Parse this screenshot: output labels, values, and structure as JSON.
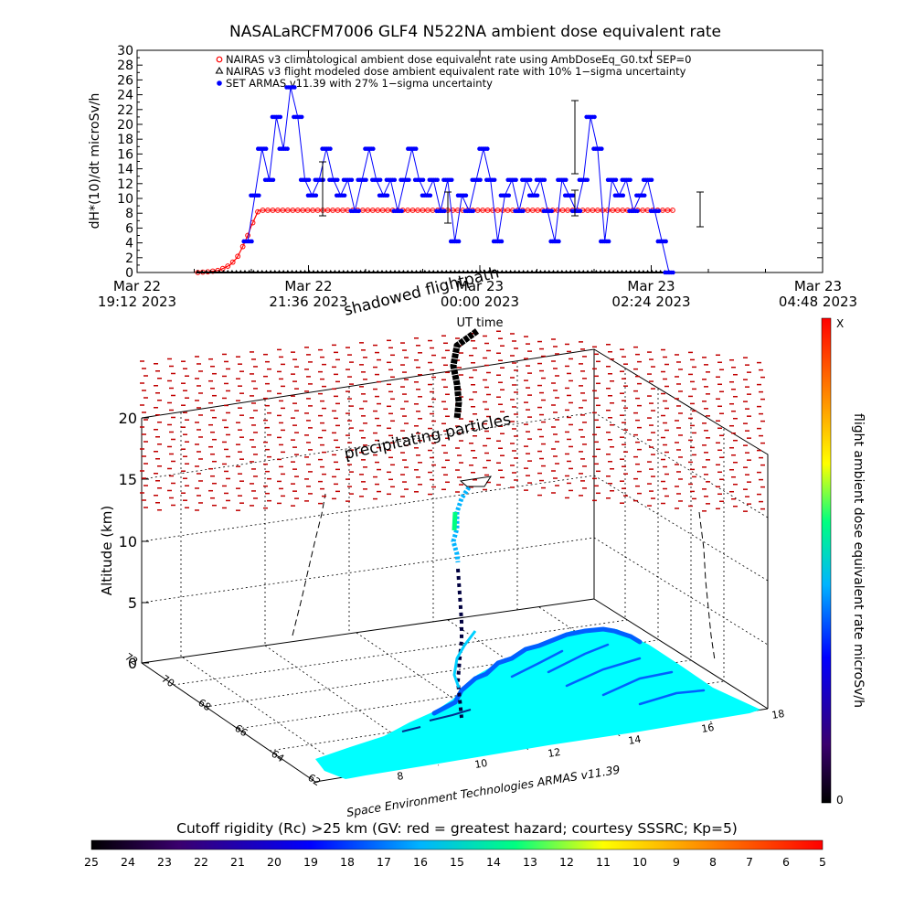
{
  "chart_data": [
    {
      "type": "line",
      "title": "NASALaRCFM7006  GLF4 N522NA ambient dose equivalent rate",
      "xlabel": "UT time",
      "ylabel": "dH*(10)/dt microSv/h",
      "ylim": [
        0,
        30
      ],
      "yticks": [
        "0",
        "2",
        "4",
        "6",
        "8",
        "10",
        "12",
        "14",
        "16",
        "18",
        "20",
        "22",
        "24",
        "26",
        "28",
        "30"
      ],
      "xticks": [
        {
          "line1": "Mar 22",
          "line2": "19:12 2023"
        },
        {
          "line1": "Mar 22",
          "line2": "21:36 2023"
        },
        {
          "line1": "Mar 23",
          "line2": "00:00 2023"
        },
        {
          "line1": "Mar 23",
          "line2": "02:24 2023"
        },
        {
          "line1": "Mar 23",
          "line2": "04:48 2023"
        }
      ],
      "xlim_hours": [
        19.2,
        28.8
      ],
      "legend": {
        "placement": "top",
        "items": [
          "NAIRAS v3 climatological ambient dose equivalent rate using AmbDoseEq_G0.txt SEP=0",
          "NAIRAS v3 flight modeled dose ambient equivalent rate with 10% 1−sigma uncertainty",
          "SET ARMAS v11.39 with 27% 1−sigma uncertainty"
        ]
      },
      "series": [
        {
          "name": "NAIRAS v3 climatological ambient dose equivalent rate using AmbDoseEq_G0.txt SEP=0",
          "color": "#ff0000",
          "x": [
            20.05,
            20.2,
            20.35,
            20.5,
            20.6,
            20.68,
            20.75,
            20.8,
            20.9,
            21.5,
            22.0,
            23.0,
            24.0,
            25.0,
            26.0,
            26.7
          ],
          "y": [
            0,
            0.1,
            0.3,
            1.0,
            2.0,
            3.5,
            5.0,
            6.3,
            8.4,
            8.4,
            8.4,
            8.4,
            8.4,
            8.4,
            8.4,
            8.4
          ]
        },
        {
          "name": "NAIRAS v3 flight modeled dose ambient equivalent rate with 10% 1−sigma uncertainty",
          "color": "#000000",
          "x": [
            20.05,
            26.7
          ],
          "y": [
            0,
            0
          ]
        },
        {
          "name": "SET ARMAS v11.39 with 27% 1−sigma uncertainty",
          "color": "#0000ff",
          "x": [
            20.75,
            20.85,
            20.95,
            21.05,
            21.15,
            21.25,
            21.35,
            21.45,
            21.55,
            21.65,
            21.75,
            21.85,
            21.95,
            22.05,
            22.15,
            22.25,
            22.35,
            22.45,
            22.55,
            22.65,
            22.75,
            22.85,
            22.95,
            23.05,
            23.15,
            23.25,
            23.35,
            23.45,
            23.55,
            23.65,
            23.75,
            23.85,
            23.95,
            24.05,
            24.15,
            24.25,
            24.35,
            24.45,
            24.55,
            24.65,
            24.75,
            24.85,
            24.95,
            25.05,
            25.15,
            25.25,
            25.35,
            25.45,
            25.55,
            25.65,
            25.75,
            25.85,
            25.95,
            26.05,
            26.15,
            26.25,
            26.35,
            26.45,
            26.55,
            26.65
          ],
          "y": [
            4.2,
            10.4,
            16.7,
            12.5,
            21,
            16.7,
            25,
            21,
            12.5,
            10.4,
            12.5,
            16.7,
            12.5,
            10.4,
            12.5,
            8.3,
            12.5,
            16.7,
            12.5,
            10.4,
            12.5,
            8.3,
            12.5,
            16.7,
            12.5,
            10.4,
            12.5,
            8.3,
            12.5,
            4.2,
            10.4,
            8.3,
            12.5,
            16.7,
            12.5,
            4.2,
            10.4,
            12.5,
            8.3,
            12.5,
            10.4,
            12.5,
            8.3,
            4.2,
            12.5,
            10.4,
            8.3,
            12.5,
            21,
            16.7,
            4.2,
            12.5,
            10.4,
            12.5,
            8.3,
            10.4,
            12.5,
            8.3,
            4.2,
            0
          ]
        }
      ]
    },
    {
      "type": "scatter",
      "subtype": "3d-flight-profile-map",
      "zlabel": "Altitude (km)",
      "zticks": [
        "0",
        "5",
        "10",
        "15",
        "20"
      ],
      "lat_ticks": [
        "62",
        "64",
        "66",
        "68",
        "70",
        "72"
      ],
      "lon_ticks": [
        "8",
        "10",
        "12",
        "14",
        "16",
        "18"
      ],
      "labels": {
        "shadowed": "shadowed flightpath",
        "precipitating": "precipitating particles",
        "credit": "Space Environment Technologies ARMAS v11.39"
      },
      "colorbar": {
        "title": "flight ambient dose equivalent rate microSv/h",
        "top_label": "X",
        "bottom_label": "0",
        "colors": [
          "#000000",
          "#3a006e",
          "#0000ff",
          "#00b4ff",
          "#00ff80",
          "#ffff00",
          "#ff8000",
          "#ff0000"
        ]
      },
      "map_color": "#00ffff"
    },
    {
      "type": "heatmap",
      "subtype": "colorbar",
      "title": "Cutoff rigidity (Rc) >25 km (GV: red = greatest hazard; courtesy SSSRC; Kp=5)",
      "tick_labels": [
        "25",
        "24",
        "23",
        "22",
        "21",
        "20",
        "19",
        "18",
        "17",
        "16",
        "15",
        "14",
        "13",
        "12",
        "11",
        "10",
        "9",
        "8",
        "7",
        "6",
        "5"
      ],
      "colors": [
        "#000000",
        "#3a006e",
        "#0000ff",
        "#00b4ff",
        "#00ff80",
        "#ffff00",
        "#ff8000",
        "#ff0000"
      ]
    }
  ]
}
